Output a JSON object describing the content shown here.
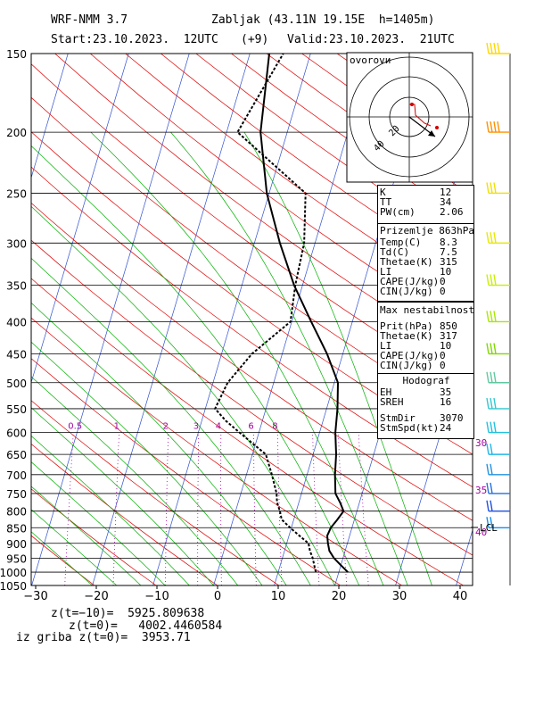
{
  "header": {
    "model": "WRF-NMM 3.7",
    "station": "Zabljak (43.11N 19.15E  h=1405m)",
    "start": "Start:23.10.2023.  12UTC",
    "offset": "(+9)",
    "valid": "Valid:23.10.2023.  21UTC"
  },
  "chart_data": {
    "type": "line",
    "title": "",
    "xlabel": "",
    "ylabel": "",
    "x_ticks": [
      -30,
      -20,
      -10,
      0,
      10,
      20,
      30,
      40
    ],
    "x_tick_labels": [
      "−30",
      "−20",
      "−10",
      "0",
      "10",
      "20",
      "30",
      "40"
    ],
    "pressure_ticks": [
      150,
      200,
      250,
      300,
      350,
      400,
      450,
      500,
      550,
      600,
      650,
      700,
      750,
      800,
      850,
      900,
      950,
      1000,
      1050
    ],
    "xlim": [
      -30,
      42
    ],
    "ylim": [
      1050,
      150
    ],
    "y_scale": "log",
    "grid": true,
    "mixing_ratio_labels": [
      "0.5",
      "1",
      "2",
      "3",
      "4",
      "6",
      "8"
    ],
    "series": [
      {
        "name": "",
        "style": "solid",
        "color": "#000000",
        "points": [
          [
            1000,
            21.5
          ],
          [
            975,
            20
          ],
          [
            950,
            18.5
          ],
          [
            925,
            17.4
          ],
          [
            900,
            16.8
          ],
          [
            875,
            16.3
          ],
          [
            850,
            16.5
          ],
          [
            825,
            17.2
          ],
          [
            800,
            17.8
          ],
          [
            775,
            16.8
          ],
          [
            750,
            15.6
          ],
          [
            700,
            14.6
          ],
          [
            650,
            13.8
          ],
          [
            600,
            12.6
          ],
          [
            550,
            11.8
          ],
          [
            500,
            10.6
          ],
          [
            450,
            7.4
          ],
          [
            400,
            3.2
          ],
          [
            350,
            -1.4
          ],
          [
            300,
            -5.8
          ],
          [
            250,
            -10.4
          ],
          [
            200,
            -14.4
          ],
          [
            150,
            -16.8
          ]
        ]
      },
      {
        "name": "",
        "style": "dashed",
        "color": "#000000",
        "points": [
          [
            1000,
            16.2
          ],
          [
            975,
            15.6
          ],
          [
            950,
            15.0
          ],
          [
            925,
            14.2
          ],
          [
            900,
            13.6
          ],
          [
            875,
            11.7
          ],
          [
            850,
            9.8
          ],
          [
            825,
            8.0
          ],
          [
            800,
            7.3
          ],
          [
            775,
            6.4
          ],
          [
            750,
            5.9
          ],
          [
            700,
            4.2
          ],
          [
            650,
            2.2
          ],
          [
            600,
            -3.2
          ],
          [
            575,
            -6.0
          ],
          [
            550,
            -8.4
          ],
          [
            500,
            -7.6
          ],
          [
            450,
            -5.0
          ],
          [
            400,
            -0.2
          ],
          [
            350,
            -1.2
          ],
          [
            300,
            -1.8
          ],
          [
            250,
            -4.0
          ],
          [
            200,
            -18.2
          ],
          [
            150,
            -14.5
          ]
        ]
      }
    ]
  },
  "index_box": [
    {
      "k": "K",
      "v": "12"
    },
    {
      "k": "TT",
      "v": "34"
    },
    {
      "k": "PW(cm)",
      "v": "2.06"
    }
  ],
  "surface_box": {
    "title": "Prizemlje 863hPa",
    "rows": [
      {
        "k": "Temp(C)",
        "v": "8.3"
      },
      {
        "k": "Td(C)",
        "v": "7.5"
      },
      {
        "k": "Thetae(K)",
        "v": "315"
      },
      {
        "k": "LI",
        "v": "10"
      },
      {
        "k": "CAPE(J/kg)",
        "v": "0"
      },
      {
        "k": "CIN(J/kg)",
        "v": "0"
      }
    ]
  },
  "instability_box": {
    "title": "Max nestabilnost",
    "rows": [
      {
        "k": "Prit(hPa)",
        "v": "850"
      },
      {
        "k": "Thetae(K)",
        "v": "317"
      },
      {
        "k": "LI",
        "v": "10"
      },
      {
        "k": "CAPE(J/kg)",
        "v": "0"
      },
      {
        "k": "CIN(J/kg)",
        "v": "0"
      }
    ]
  },
  "hodograph_box": {
    "title": "Hodograf",
    "rows": [
      {
        "k": "EH",
        "v": "35"
      },
      {
        "k": "SREH",
        "v": "16"
      },
      {
        "k": "StmDir",
        "v": "3070"
      },
      {
        "k": "StmSpd(kt)",
        "v": "24"
      }
    ]
  },
  "hodograph": {
    "label": "ovorovи",
    "ring_labels": [
      "20",
      "40"
    ]
  },
  "side_labels": {
    "l30": "30",
    "l35": "35",
    "l40": "40",
    "lcl": "LCL"
  },
  "footer": {
    "z_minus10": "z(t=−10)=  5925.809638",
    "z_zero": "z(t=0)=   4002.4460584",
    "grib": "iz griba z(t=0)=  3953.71"
  }
}
